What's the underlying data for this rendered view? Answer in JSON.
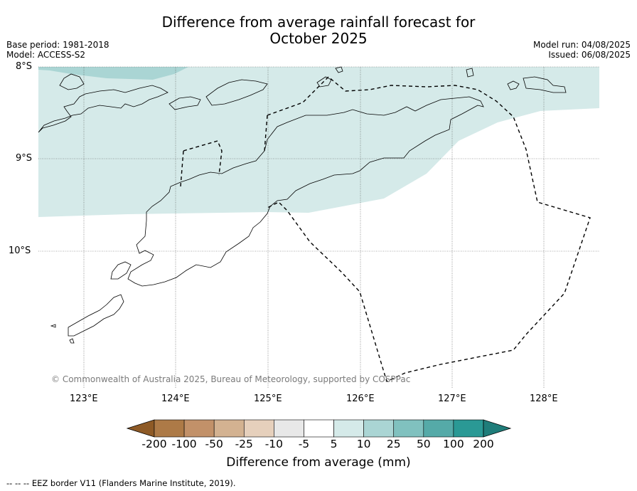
{
  "title_line1": "Difference from average rainfall forecast for",
  "title_line2": "October 2025",
  "meta_left": {
    "base_period": "Base period: 1981-2018",
    "model": "Model: ACCESS-S2"
  },
  "meta_right": {
    "model_run": "Model run: 04/08/2025",
    "issued": "Issued: 06/08/2025"
  },
  "lat_labels": [
    "8°S",
    "9°S",
    "10°S"
  ],
  "lon_labels": [
    "123°E",
    "124°E",
    "125°E",
    "126°E",
    "127°E",
    "128°E"
  ],
  "copyright": "© Commonwealth of Australia 2025, Bureau of Meteorology, supported by COSPPac",
  "colorbar": {
    "labels": [
      "-200",
      "-100",
      "-50",
      "-25",
      "-10",
      "-5",
      "5",
      "10",
      "25",
      "50",
      "100",
      "200"
    ],
    "colors": [
      "#8e5a26",
      "#ad7a47",
      "#c29169",
      "#d3b291",
      "#e6d0bc",
      "#e8e8e8",
      "#ffffff",
      "#d5eae9",
      "#aad5d4",
      "#80c1bf",
      "#55aaa8",
      "#2a9995",
      "#1f7d7a"
    ],
    "title": "Difference from average (mm)"
  },
  "legend_note": "--  --  -- EEZ border V11 (Flanders Marine Institute, 2019).",
  "map_colors": {
    "band_10_25": "#aad5d4",
    "band_5_10": "#d5eae9",
    "coast": "#000000",
    "grid": "#555555"
  }
}
